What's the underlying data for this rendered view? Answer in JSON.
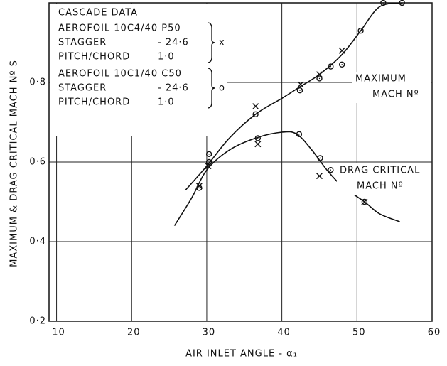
{
  "chart_data": {
    "type": "line",
    "x_label": "AIR  INLET  ANGLE  -  α₁",
    "y_label": "MAXIMUM & DRAG CRITICAL MACH Nº S",
    "xlim": [
      9,
      60
    ],
    "xticks": [
      10,
      20,
      30,
      40,
      50,
      60
    ],
    "ylim": [
      0.2,
      1.0
    ],
    "yticks": [
      {
        "value": 0.2,
        "label": "0·2"
      },
      {
        "value": 0.4,
        "label": "0·4"
      },
      {
        "value": 0.6,
        "label": "0·6"
      },
      {
        "value": 0.8,
        "label": "0·8"
      }
    ],
    "grid": true,
    "legend_title": "CASCADE DATA",
    "series": [
      {
        "name": [
          "MAXIMUM",
          "MACH Nº"
        ],
        "type": "line",
        "color": "#111111",
        "x": [
          27.2,
          30,
          33,
          36.5,
          40,
          42.5,
          45,
          48,
          50.5,
          53,
          56
        ],
        "values": [
          0.53,
          0.59,
          0.66,
          0.72,
          0.76,
          0.79,
          0.82,
          0.87,
          0.93,
          0.99,
          1.0
        ]
      },
      {
        "name": [
          "DRAG CRITICAL",
          "MACH Nº"
        ],
        "type": "line",
        "color": "#111111",
        "x": [
          25.7,
          28,
          30,
          33,
          36.5,
          40,
          42,
          44,
          46,
          48,
          51,
          53,
          55.7
        ],
        "values": [
          0.44,
          0.51,
          0.58,
          0.63,
          0.66,
          0.675,
          0.67,
          0.63,
          0.58,
          0.54,
          0.5,
          0.47,
          0.45
        ]
      },
      {
        "name": "AEROFOIL   10C4/40 P50",
        "type": "scatter",
        "marker": "x",
        "marker_label": "x",
        "color": "#111111",
        "details": [
          [
            "STAGGER",
            "- 24·6"
          ],
          [
            "PITCH/CHORD",
            "1·0"
          ]
        ],
        "x": [
          29,
          30.2,
          36.5,
          36.8,
          42.5,
          45,
          45,
          48,
          48,
          51
        ],
        "values": [
          0.54,
          0.59,
          0.74,
          0.645,
          0.795,
          0.82,
          0.565,
          0.88,
          0.55,
          0.5
        ]
      },
      {
        "name": "AEROFOIL   10C1/40 C50",
        "type": "scatter",
        "marker": "o",
        "marker_label": "o",
        "color": "#111111",
        "details": [
          [
            "STAGGER",
            "- 24·6"
          ],
          [
            "PITCH/CHORD",
            "1·0"
          ]
        ],
        "x": [
          29,
          30.3,
          30.3,
          36.5,
          36.8,
          42.4,
          42.3,
          45,
          45.1,
          46.5,
          46.5,
          48,
          48,
          50.5,
          51,
          53.5,
          56
        ],
        "values": [
          0.535,
          0.62,
          0.6,
          0.72,
          0.66,
          0.78,
          0.67,
          0.81,
          0.61,
          0.58,
          0.84,
          0.845,
          0.575,
          0.93,
          0.5,
          1.0,
          1.0
        ]
      }
    ]
  }
}
